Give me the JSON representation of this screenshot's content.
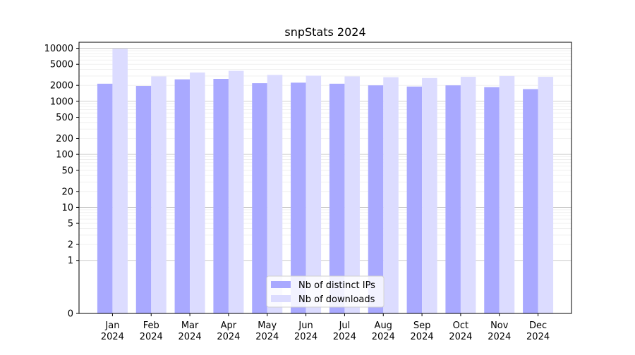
{
  "chart_data": {
    "type": "bar",
    "title": "snpStats 2024",
    "xlabel": "",
    "ylabel": "",
    "y_scale": "symlog",
    "ylim": [
      0,
      13000
    ],
    "y_ticks": [
      0,
      1,
      2,
      5,
      10,
      20,
      50,
      100,
      200,
      500,
      1000,
      2000,
      5000,
      10000
    ],
    "y_tick_labels": [
      "0",
      "1",
      "2",
      "5",
      "10",
      "20",
      "50",
      "100",
      "200",
      "500",
      "1000",
      "2000",
      "5000",
      "10000"
    ],
    "grid": "horizontal",
    "legend_position": "bottom-center",
    "categories": [
      [
        "Jan",
        "2024"
      ],
      [
        "Feb",
        "2024"
      ],
      [
        "Mar",
        "2024"
      ],
      [
        "Apr",
        "2024"
      ],
      [
        "May",
        "2024"
      ],
      [
        "Jun",
        "2024"
      ],
      [
        "Jul",
        "2024"
      ],
      [
        "Aug",
        "2024"
      ],
      [
        "Sep",
        "2024"
      ],
      [
        "Oct",
        "2024"
      ],
      [
        "Nov",
        "2024"
      ],
      [
        "Dec",
        "2024"
      ]
    ],
    "series": [
      {
        "name": "Nb of distinct IPs",
        "color": "#a9a9ff",
        "values": [
          2150,
          1950,
          2600,
          2650,
          2200,
          2250,
          2150,
          2000,
          1900,
          2000,
          1850,
          1700
        ]
      },
      {
        "name": "Nb of downloads",
        "color": "#dcdcff",
        "values": [
          9800,
          2950,
          3500,
          3750,
          3150,
          3050,
          2950,
          2850,
          2750,
          2900,
          3000,
          2900
        ]
      }
    ]
  }
}
